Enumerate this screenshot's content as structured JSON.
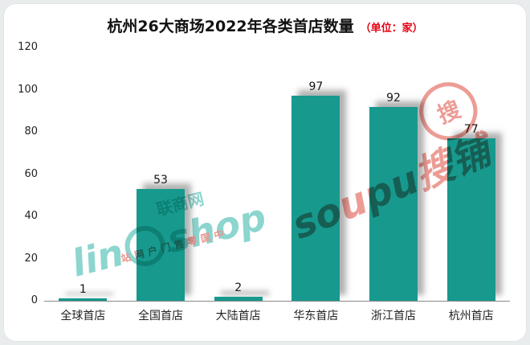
{
  "chart_data": {
    "type": "bar",
    "title": "杭州26大商场2022年各类首店数量",
    "unit_label": "（单位：家）",
    "categories": [
      "全球首店",
      "全国首店",
      "大陆首店",
      "华东首店",
      "浙江首店",
      "杭州首店"
    ],
    "values": [
      1,
      53,
      2,
      97,
      92,
      77
    ],
    "ylim": [
      0,
      120
    ],
    "yticks": [
      0,
      20,
      40,
      60,
      80,
      100,
      120
    ],
    "grid": false,
    "legend": "none",
    "bar_color": "#17998e"
  },
  "theme": {
    "bar_color": "#17998e",
    "title_color": "#111111",
    "unit_color": "#e60012",
    "axis_color": "#8a8a8a",
    "watermark_teal": "#2fb3a8",
    "watermark_red": "#dc3a2c",
    "panel_bg": "#ffffff",
    "page_bg": "#e8ecec"
  },
  "watermarks": {
    "linkshop_left": "lin",
    "linkshop_right": "shop",
    "linkshop_cn": "联商网",
    "linkshop_slogan": "中国零售门户网站",
    "soupu_text": "soupu搜铺",
    "soupu_stamp": "搜"
  }
}
